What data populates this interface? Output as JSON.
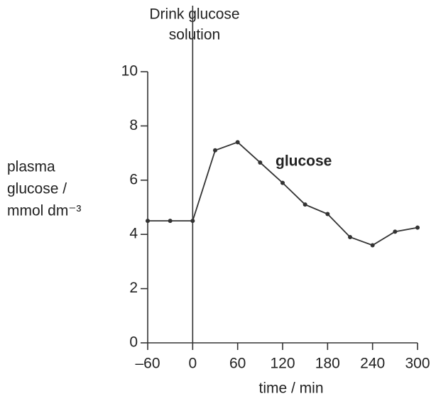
{
  "chart_data": {
    "type": "line",
    "x": [
      -60,
      -30,
      0,
      30,
      60,
      90,
      120,
      150,
      180,
      210,
      240,
      270,
      300
    ],
    "series": [
      {
        "name": "glucose",
        "color": "#333333",
        "values": [
          4.5,
          4.5,
          4.5,
          7.1,
          7.4,
          6.65,
          5.9,
          5.1,
          4.75,
          3.9,
          3.6,
          4.1,
          4.25
        ]
      }
    ],
    "xlim": [
      -60,
      300
    ],
    "xticks": [
      {
        "value": -60,
        "label": "–60"
      },
      0,
      60,
      120,
      180,
      240,
      300
    ],
    "ylim": [
      0,
      10
    ],
    "yticks": [
      0,
      2,
      4,
      6,
      8,
      10
    ],
    "x_label": "time / min",
    "y_label": [
      "plasma",
      "glucose /",
      "mmol dm⁻³"
    ],
    "event_x": 0,
    "event_label": [
      "Drink glucose",
      "solution"
    ]
  }
}
